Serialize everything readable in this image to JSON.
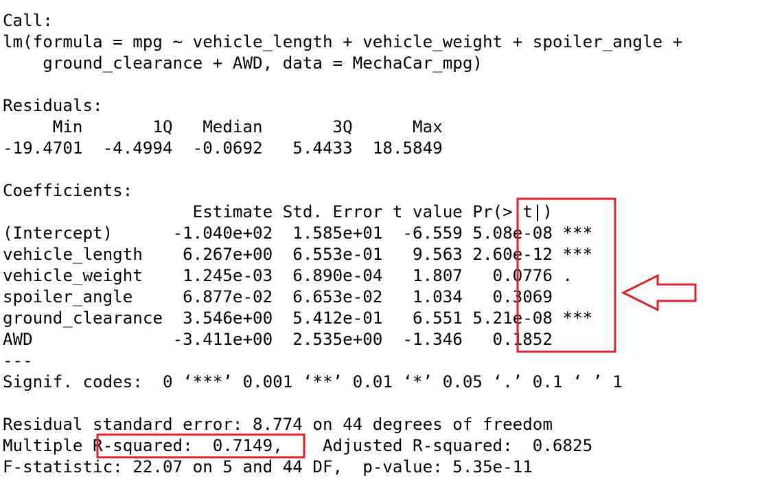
{
  "lines": [
    "Call:",
    "lm(formula = mpg ~ vehicle_length + vehicle_weight + spoiler_angle +",
    "    ground_clearance + AWD, data = MechaCar_mpg)",
    "",
    "Residuals:",
    "     Min       1Q   Median       3Q      Max ",
    "-19.4701  -4.4994  -0.0692   5.4433  18.5849 ",
    "",
    "Coefficients:",
    "                   Estimate Std. Error t value Pr(>|t|)    ",
    "(Intercept)      -1.040e+02  1.585e+01  -6.559 5.08e-08 ***",
    "vehicle_length    6.267e+00  6.553e-01   9.563 2.60e-12 ***",
    "vehicle_weight    1.245e-03  6.890e-04   1.807   0.0776 .  ",
    "spoiler_angle     6.877e-02  6.653e-02   1.034   0.3069    ",
    "ground_clearance  3.546e+00  5.412e-01   6.551 5.21e-08 ***",
    "AWD              -3.411e+00  2.535e+00  -1.346   0.1852    ",
    "---",
    "Signif. codes:  0 ‘***’ 0.001 ‘**’ 0.01 ‘*’ 0.05 ‘.’ 0.1 ‘ ’ 1",
    "",
    "Residual standard error: 8.774 on 44 degrees of freedom",
    "Multiple R-squared:  0.7149,\tAdjusted R-squared:  0.6825 ",
    "F-statistic: 22.07 on 5 and 44 DF,  p-value: 5.35e-11"
  ],
  "colors": {
    "text": "#000000",
    "background": "#ffffff",
    "highlight": "#e0202a"
  }
}
